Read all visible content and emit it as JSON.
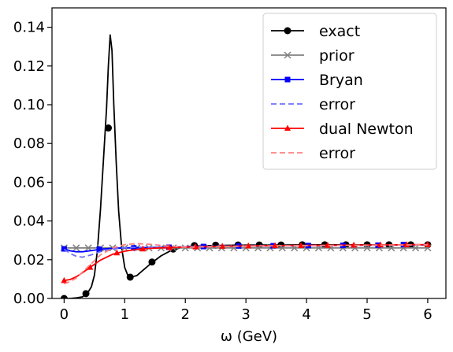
{
  "chart_data": {
    "type": "line",
    "xlabel": "ω (GeV)",
    "xlim": [
      -0.2,
      6.3
    ],
    "ylim": [
      0.0,
      0.15
    ],
    "xticks": [
      0,
      1,
      2,
      3,
      4,
      5,
      6
    ],
    "yticks": [
      0.0,
      0.02,
      0.04,
      0.06,
      0.08,
      0.1,
      0.12,
      0.14
    ],
    "xtick_labels": [
      "0",
      "1",
      "2",
      "3",
      "4",
      "5",
      "6"
    ],
    "ytick_labels": [
      "0.00",
      "0.02",
      "0.04",
      "0.06",
      "0.08",
      "0.10",
      "0.12",
      "0.14"
    ],
    "grid": false,
    "legend_position": "top-right",
    "series": [
      {
        "name": "exact",
        "color": "#000000",
        "style": "solid",
        "marker": "circle",
        "x": [
          0.0,
          0.1,
          0.2,
          0.3,
          0.38,
          0.45,
          0.5,
          0.55,
          0.6,
          0.65,
          0.7,
          0.73,
          0.76,
          0.79,
          0.82,
          0.86,
          0.9,
          0.95,
          1.0,
          1.05,
          1.1,
          1.2,
          1.3,
          1.45,
          1.6,
          1.75,
          1.9,
          2.1,
          2.4,
          2.8,
          3.2,
          3.6,
          4.0,
          4.5,
          5.0,
          5.5,
          6.0
        ],
        "y": [
          0.0,
          0.0,
          0.0003,
          0.0008,
          0.0025,
          0.006,
          0.012,
          0.025,
          0.046,
          0.072,
          0.098,
          0.12,
          0.136,
          0.128,
          0.1,
          0.07,
          0.045,
          0.026,
          0.016,
          0.012,
          0.011,
          0.0118,
          0.0145,
          0.0185,
          0.022,
          0.0245,
          0.026,
          0.027,
          0.0273,
          0.0275,
          0.0276,
          0.0276,
          0.0277,
          0.0277,
          0.0277,
          0.0277,
          0.0277
        ],
        "markers_x": [
          0.0,
          0.36,
          0.73,
          1.09,
          1.45,
          1.8,
          2.15,
          2.5,
          2.87,
          3.22,
          3.58,
          3.93,
          4.3,
          4.65,
          5.0,
          5.36,
          5.72,
          6.0
        ],
        "markers_y": [
          0.0,
          0.0025,
          0.088,
          0.011,
          0.0188,
          0.0255,
          0.0273,
          0.0275,
          0.0276,
          0.0276,
          0.0276,
          0.0277,
          0.0277,
          0.0277,
          0.0277,
          0.0277,
          0.0277,
          0.0277
        ]
      },
      {
        "name": "prior",
        "color": "#808080",
        "style": "solid",
        "marker": "x",
        "x": [
          0.0,
          6.0
        ],
        "y": [
          0.0261,
          0.0261
        ],
        "markers_x": [
          0.0,
          0.2,
          0.4,
          0.6,
          0.8,
          1.0,
          1.2,
          1.4,
          1.6,
          1.8,
          2.0,
          2.2,
          2.4,
          2.6,
          2.8,
          3.0,
          3.2,
          3.4,
          3.6,
          3.8,
          4.0,
          4.2,
          4.4,
          4.6,
          4.8,
          5.0,
          5.2,
          5.4,
          5.6,
          5.8,
          6.0
        ],
        "markers_y": [
          0.0261,
          0.0261,
          0.0261,
          0.0261,
          0.0261,
          0.0261,
          0.0261,
          0.0261,
          0.0261,
          0.0261,
          0.0261,
          0.0261,
          0.0261,
          0.0261,
          0.0261,
          0.0261,
          0.0261,
          0.0261,
          0.0261,
          0.0261,
          0.0261,
          0.0261,
          0.0261,
          0.0261,
          0.0261,
          0.0261,
          0.0261,
          0.0261,
          0.0261,
          0.0261,
          0.0261
        ]
      },
      {
        "name": "Bryan",
        "color": "#0000ff",
        "style": "solid",
        "marker": "square",
        "x": [
          0.0,
          0.1,
          0.2,
          0.3,
          0.45,
          0.6,
          0.8,
          1.0,
          1.2,
          1.5,
          1.8,
          2.2,
          2.6,
          3.0,
          3.5,
          4.0,
          4.5,
          5.0,
          5.5,
          6.0
        ],
        "y": [
          0.0256,
          0.0246,
          0.0241,
          0.0241,
          0.0247,
          0.0254,
          0.0259,
          0.0261,
          0.0262,
          0.0263,
          0.0265,
          0.0268,
          0.027,
          0.0271,
          0.0272,
          0.0273,
          0.0274,
          0.0275,
          0.0276,
          0.0277
        ],
        "markers_x": [
          0.0,
          0.58,
          1.15,
          1.73,
          2.3,
          2.88,
          3.45,
          4.03,
          4.6,
          5.18,
          5.6
        ],
        "markers_y": [
          0.0256,
          0.0254,
          0.0261,
          0.0264,
          0.0268,
          0.0271,
          0.0272,
          0.0273,
          0.0274,
          0.0275,
          0.0278
        ]
      },
      {
        "name": "error",
        "color": "#7070ff",
        "style": "dashed",
        "marker": "none",
        "x": [
          0.0,
          0.1,
          0.2,
          0.3,
          0.45,
          0.6,
          0.8,
          1.0,
          1.2,
          1.5,
          1.8,
          2.2,
          2.6,
          3.0,
          3.5,
          4.0,
          4.5,
          5.0,
          5.5,
          6.0
        ],
        "y": [
          0.0254,
          0.0232,
          0.0218,
          0.0213,
          0.0225,
          0.0242,
          0.0255,
          0.0262,
          0.0264,
          0.0265,
          0.0266,
          0.0268,
          0.027,
          0.0271,
          0.0272,
          0.0273,
          0.0274,
          0.0275,
          0.0276,
          0.0277
        ]
      },
      {
        "name": "dual Newton",
        "color": "#ff0000",
        "style": "solid",
        "marker": "triangle",
        "x": [
          0.0,
          0.1,
          0.2,
          0.3,
          0.45,
          0.6,
          0.8,
          1.0,
          1.2,
          1.4,
          1.6,
          1.8,
          2.0,
          2.3,
          2.6,
          3.0,
          3.5,
          4.0,
          4.5,
          5.0,
          5.5,
          6.0
        ],
        "y": [
          0.0092,
          0.0098,
          0.0112,
          0.0132,
          0.0165,
          0.0198,
          0.0228,
          0.0244,
          0.0253,
          0.0258,
          0.0261,
          0.0263,
          0.0265,
          0.0267,
          0.0269,
          0.0271,
          0.0273,
          0.0274,
          0.0275,
          0.0276,
          0.0277,
          0.0278
        ],
        "markers_x": [
          0.0,
          0.43,
          0.87,
          1.3,
          1.74,
          2.17,
          2.61,
          3.04,
          3.48,
          3.91,
          4.35,
          4.78,
          5.22,
          5.65,
          6.0
        ],
        "markers_y": [
          0.0092,
          0.016,
          0.0235,
          0.0255,
          0.0262,
          0.0266,
          0.0269,
          0.0271,
          0.0272,
          0.0273,
          0.0274,
          0.0275,
          0.0276,
          0.0277,
          0.0278
        ]
      },
      {
        "name": "error",
        "color": "#ff8080",
        "style": "dashed",
        "marker": "none",
        "x": [
          0.0,
          0.1,
          0.2,
          0.3,
          0.45,
          0.6,
          0.8,
          1.0,
          1.2,
          1.4,
          1.6,
          1.8,
          2.0,
          2.3,
          2.6,
          3.0,
          3.5,
          4.0,
          4.5,
          5.0,
          5.5,
          6.0
        ],
        "y": [
          0.0075,
          0.0088,
          0.0105,
          0.0135,
          0.018,
          0.0225,
          0.026,
          0.0278,
          0.0283,
          0.028,
          0.0274,
          0.0268,
          0.0265,
          0.0266,
          0.0268,
          0.027,
          0.0272,
          0.0273,
          0.0274,
          0.0275,
          0.0276,
          0.0277
        ]
      }
    ]
  }
}
